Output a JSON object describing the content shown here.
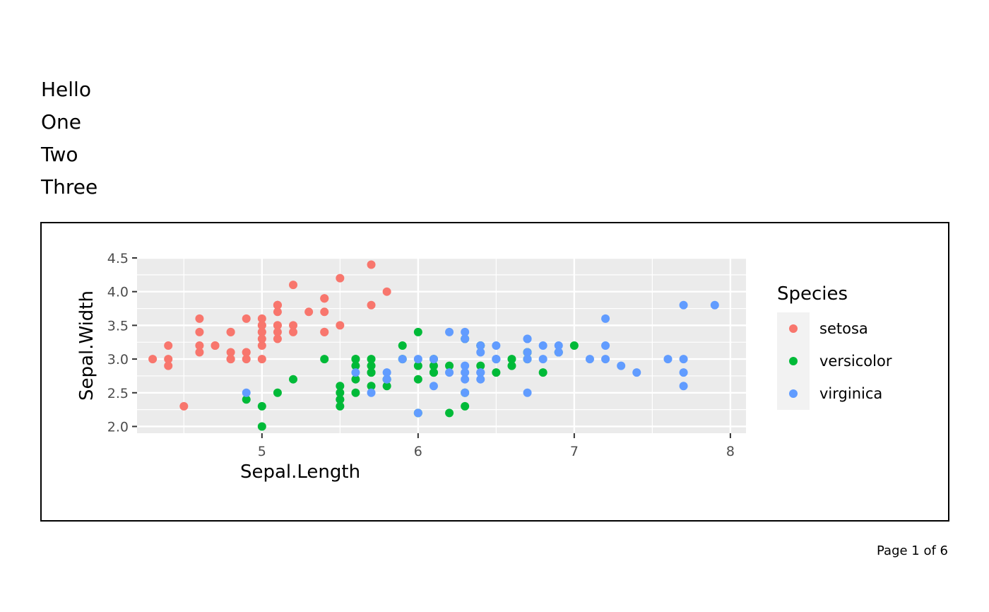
{
  "header": {
    "lines": [
      "Hello",
      "One",
      "Two",
      "Three"
    ]
  },
  "footer": {
    "page_label": "Page 1 of 6"
  },
  "chart_data": {
    "type": "scatter",
    "xlabel": "Sepal.Length",
    "ylabel": "Sepal.Width",
    "xlim": [
      4.2,
      8.1
    ],
    "ylim": [
      1.9,
      4.5
    ],
    "xticks": [
      5,
      6,
      7,
      8
    ],
    "yticks": [
      2.0,
      2.5,
      3.0,
      3.5,
      4.0,
      4.5
    ],
    "ytick_labels": [
      "2.0",
      "2.5",
      "3.0",
      "3.5",
      "4.0",
      "4.5"
    ],
    "grid": true,
    "panel_background": "#ebebeb",
    "legend": {
      "title": "Species",
      "position": "right"
    },
    "series": [
      {
        "name": "setosa",
        "color": "#F8766D",
        "points": [
          [
            5.1,
            3.5
          ],
          [
            4.9,
            3.0
          ],
          [
            4.7,
            3.2
          ],
          [
            4.6,
            3.1
          ],
          [
            5.0,
            3.6
          ],
          [
            5.4,
            3.9
          ],
          [
            4.6,
            3.4
          ],
          [
            5.0,
            3.4
          ],
          [
            4.4,
            2.9
          ],
          [
            4.9,
            3.1
          ],
          [
            5.4,
            3.7
          ],
          [
            4.8,
            3.4
          ],
          [
            4.8,
            3.0
          ],
          [
            4.3,
            3.0
          ],
          [
            5.8,
            4.0
          ],
          [
            5.7,
            4.4
          ],
          [
            5.4,
            3.9
          ],
          [
            5.1,
            3.5
          ],
          [
            5.7,
            3.8
          ],
          [
            5.1,
            3.8
          ],
          [
            5.4,
            3.4
          ],
          [
            5.1,
            3.7
          ],
          [
            4.6,
            3.6
          ],
          [
            5.1,
            3.3
          ],
          [
            4.8,
            3.4
          ],
          [
            5.0,
            3.0
          ],
          [
            5.0,
            3.4
          ],
          [
            5.2,
            3.5
          ],
          [
            5.2,
            3.4
          ],
          [
            4.7,
            3.2
          ],
          [
            4.8,
            3.1
          ],
          [
            5.4,
            3.4
          ],
          [
            5.2,
            4.1
          ],
          [
            5.5,
            4.2
          ],
          [
            4.9,
            3.1
          ],
          [
            5.0,
            3.2
          ],
          [
            5.5,
            3.5
          ],
          [
            4.9,
            3.6
          ],
          [
            4.4,
            3.0
          ],
          [
            5.1,
            3.4
          ],
          [
            5.0,
            3.5
          ],
          [
            4.5,
            2.3
          ],
          [
            4.4,
            3.2
          ],
          [
            5.0,
            3.5
          ],
          [
            5.1,
            3.8
          ],
          [
            4.8,
            3.0
          ],
          [
            5.1,
            3.8
          ],
          [
            4.6,
            3.2
          ],
          [
            5.3,
            3.7
          ],
          [
            5.0,
            3.3
          ]
        ]
      },
      {
        "name": "versicolor",
        "color": "#00BA38",
        "points": [
          [
            7.0,
            3.2
          ],
          [
            6.4,
            3.2
          ],
          [
            6.9,
            3.1
          ],
          [
            5.5,
            2.3
          ],
          [
            6.5,
            2.8
          ],
          [
            5.7,
            2.8
          ],
          [
            6.3,
            3.3
          ],
          [
            4.9,
            2.4
          ],
          [
            6.6,
            2.9
          ],
          [
            5.2,
            2.7
          ],
          [
            5.0,
            2.0
          ],
          [
            5.9,
            3.0
          ],
          [
            6.0,
            2.2
          ],
          [
            6.1,
            2.9
          ],
          [
            5.6,
            2.9
          ],
          [
            6.7,
            3.1
          ],
          [
            5.6,
            3.0
          ],
          [
            5.8,
            2.7
          ],
          [
            6.2,
            2.2
          ],
          [
            5.6,
            2.5
          ],
          [
            5.9,
            3.2
          ],
          [
            6.1,
            2.8
          ],
          [
            6.3,
            2.5
          ],
          [
            6.1,
            2.8
          ],
          [
            6.4,
            2.9
          ],
          [
            6.6,
            3.0
          ],
          [
            6.8,
            2.8
          ],
          [
            6.7,
            3.0
          ],
          [
            6.0,
            2.9
          ],
          [
            5.7,
            2.6
          ],
          [
            5.5,
            2.4
          ],
          [
            5.5,
            2.4
          ],
          [
            5.8,
            2.7
          ],
          [
            6.0,
            2.7
          ],
          [
            5.4,
            3.0
          ],
          [
            6.0,
            3.4
          ],
          [
            6.7,
            3.1
          ],
          [
            6.3,
            2.3
          ],
          [
            5.6,
            3.0
          ],
          [
            5.5,
            2.5
          ],
          [
            5.5,
            2.6
          ],
          [
            6.1,
            3.0
          ],
          [
            5.8,
            2.6
          ],
          [
            5.0,
            2.3
          ],
          [
            5.6,
            2.7
          ],
          [
            5.7,
            3.0
          ],
          [
            5.7,
            2.9
          ],
          [
            6.2,
            2.9
          ],
          [
            5.1,
            2.5
          ],
          [
            5.7,
            2.8
          ]
        ]
      },
      {
        "name": "virginica",
        "color": "#619CFF",
        "points": [
          [
            6.3,
            3.3
          ],
          [
            5.8,
            2.7
          ],
          [
            7.1,
            3.0
          ],
          [
            6.3,
            2.9
          ],
          [
            6.5,
            3.0
          ],
          [
            7.6,
            3.0
          ],
          [
            4.9,
            2.5
          ],
          [
            7.3,
            2.9
          ],
          [
            6.7,
            2.5
          ],
          [
            7.2,
            3.6
          ],
          [
            6.5,
            3.2
          ],
          [
            6.4,
            2.7
          ],
          [
            6.8,
            3.0
          ],
          [
            5.7,
            2.5
          ],
          [
            5.8,
            2.8
          ],
          [
            6.4,
            3.2
          ],
          [
            6.5,
            3.0
          ],
          [
            7.7,
            3.8
          ],
          [
            7.7,
            2.6
          ],
          [
            6.0,
            2.2
          ],
          [
            6.9,
            3.2
          ],
          [
            5.6,
            2.8
          ],
          [
            7.7,
            2.8
          ],
          [
            6.3,
            2.7
          ],
          [
            6.7,
            3.3
          ],
          [
            7.2,
            3.2
          ],
          [
            6.2,
            2.8
          ],
          [
            6.1,
            3.0
          ],
          [
            6.4,
            2.8
          ],
          [
            7.2,
            3.0
          ],
          [
            7.4,
            2.8
          ],
          [
            7.9,
            3.8
          ],
          [
            6.4,
            2.8
          ],
          [
            6.3,
            2.8
          ],
          [
            6.1,
            2.6
          ],
          [
            7.7,
            3.0
          ],
          [
            6.3,
            3.4
          ],
          [
            6.4,
            3.1
          ],
          [
            6.0,
            3.0
          ],
          [
            6.9,
            3.1
          ],
          [
            6.7,
            3.1
          ],
          [
            6.9,
            3.1
          ],
          [
            5.8,
            2.7
          ],
          [
            6.8,
            3.2
          ],
          [
            6.7,
            3.3
          ],
          [
            6.7,
            3.0
          ],
          [
            6.3,
            2.5
          ],
          [
            6.5,
            3.0
          ],
          [
            6.2,
            3.4
          ],
          [
            5.9,
            3.0
          ]
        ]
      }
    ]
  }
}
